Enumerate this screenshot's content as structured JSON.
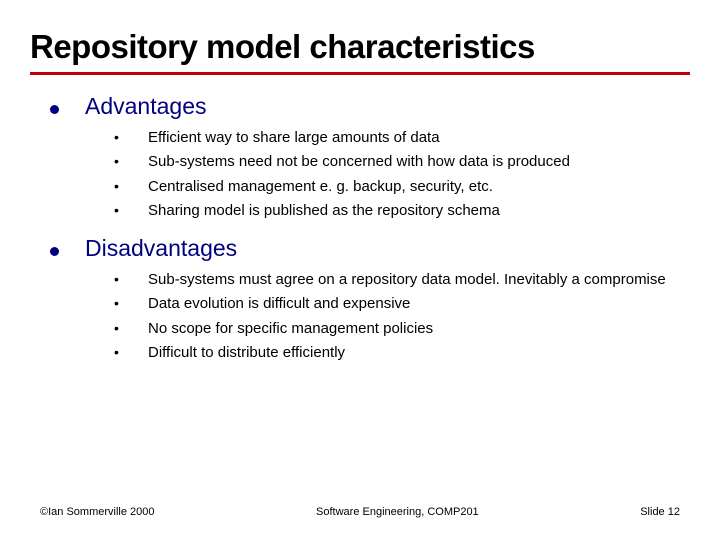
{
  "title": "Repository model characteristics",
  "colors": {
    "rule": "#c00000",
    "bullet": "#000080",
    "section_text": "#000080",
    "body_text": "#000000",
    "background": "#ffffff"
  },
  "typography": {
    "title_fontsize": 33,
    "title_weight": "bold",
    "section_fontsize": 23,
    "item_fontsize": 15,
    "footer_fontsize": 11,
    "font_family": "Arial"
  },
  "sections": [
    {
      "heading": "Advantages",
      "items": [
        "Efficient way to share large amounts of data",
        "Sub-systems need not be concerned with how data is produced",
        "Centralised management e. g. backup, security, etc.",
        "Sharing model is published as the repository schema"
      ]
    },
    {
      "heading": "Disadvantages",
      "items": [
        "Sub-systems must agree on a repository data model. Inevitably a compromise",
        "Data evolution is difficult and expensive",
        "No scope for specific management policies",
        "Difficult to distribute efficiently"
      ]
    }
  ],
  "footer": {
    "left": "©Ian Sommerville 2000",
    "center": "Software Engineering, COMP201",
    "right": "Slide 12"
  }
}
